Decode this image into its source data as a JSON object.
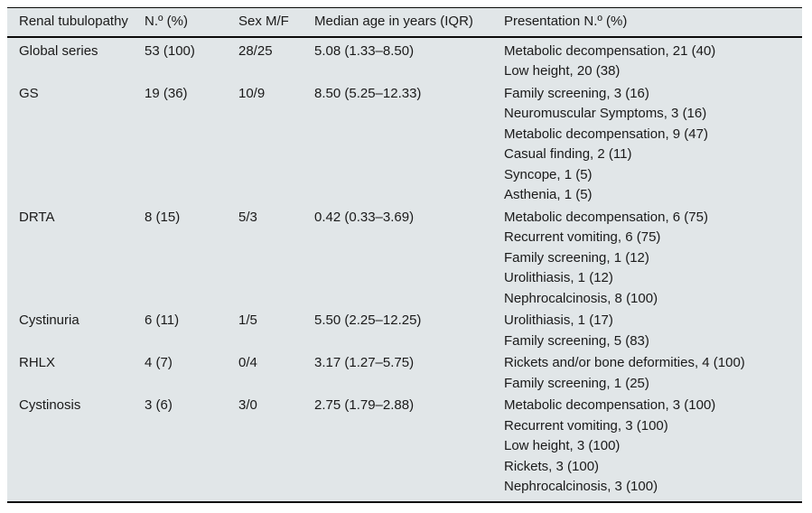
{
  "colors": {
    "table_background": "#e1e6e8",
    "rule_color": "#0a0a0a",
    "text_color": "#1a1a1a",
    "page_background": "#ffffff"
  },
  "table": {
    "headers": [
      "Renal tubulopathy",
      "N.º (%)",
      "Sex M/F",
      "Median age in years (IQR)",
      "Presentation N.º (%)"
    ],
    "rows": [
      {
        "tubulopathy": "Global series",
        "n_pct": "53 (100)",
        "sex_mf": "28/25",
        "median_age_iqr": "5.08 (1.33–8.50)",
        "presentations": [
          "Metabolic decompensation, 21 (40)",
          "Low height, 20 (38)"
        ]
      },
      {
        "tubulopathy": "GS",
        "n_pct": "19 (36)",
        "sex_mf": "10/9",
        "median_age_iqr": "8.50 (5.25–12.33)",
        "presentations": [
          "Family screening, 3 (16)",
          "Neuromuscular Symptoms, 3 (16)",
          "Metabolic decompensation, 9 (47)",
          "Casual finding, 2 (11)",
          "Syncope, 1 (5)",
          "Asthenia, 1 (5)"
        ]
      },
      {
        "tubulopathy": "DRTA",
        "n_pct": "8 (15)",
        "sex_mf": "5/3",
        "median_age_iqr": "0.42 (0.33–3.69)",
        "presentations": [
          "Metabolic decompensation, 6 (75)",
          "Recurrent vomiting, 6 (75)",
          "Family screening, 1 (12)",
          "Urolithiasis, 1 (12)",
          "Nephrocalcinosis, 8 (100)"
        ]
      },
      {
        "tubulopathy": "Cystinuria",
        "n_pct": "6 (11)",
        "sex_mf": "1/5",
        "median_age_iqr": "5.50 (2.25–12.25)",
        "presentations": [
          "Urolithiasis, 1 (17)",
          "Family screening, 5 (83)"
        ]
      },
      {
        "tubulopathy": "RHLX",
        "n_pct": "4 (7)",
        "sex_mf": "0/4",
        "median_age_iqr": "3.17 (1.27–5.75)",
        "presentations": [
          "Rickets and/or bone deformities, 4 (100)",
          "Family screening, 1 (25)"
        ]
      },
      {
        "tubulopathy": "Cystinosis",
        "n_pct": "3 (6)",
        "sex_mf": "3/0",
        "median_age_iqr": "2.75 (1.79–2.88)",
        "presentations": [
          "Metabolic decompensation, 3 (100)",
          "Recurrent vomiting, 3 (100)",
          "Low height, 3 (100)",
          "Rickets, 3 (100)",
          "Nephrocalcinosis, 3 (100)"
        ]
      }
    ]
  }
}
